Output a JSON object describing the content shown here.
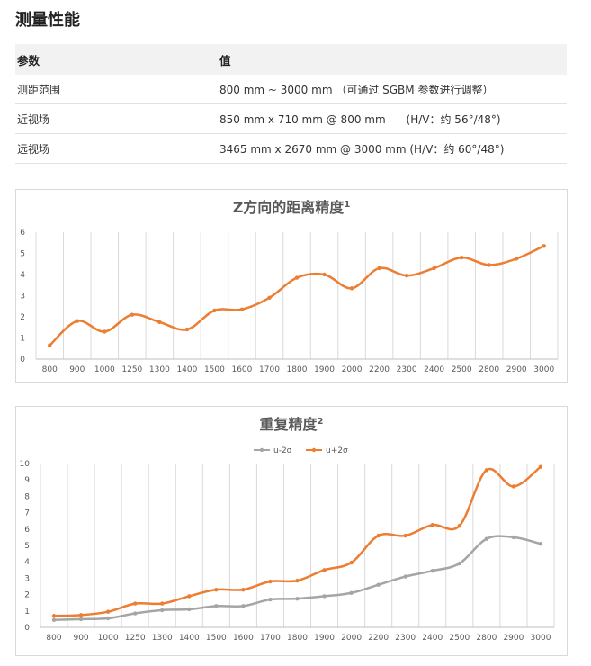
{
  "page": {
    "title": "测量性能",
    "table": {
      "headers": [
        "参数",
        "值"
      ],
      "rows": [
        [
          "测距范围",
          "800 mm ~ 3000 mm （可通过 SGBM 参数进行调整）"
        ],
        [
          "近视场",
          "850 mm x 710 mm @ 800 mm      (H/V：约 56°/48°)"
        ],
        [
          "远视场",
          "3465 mm x 2670 mm @ 3000 mm (H/V：约 60°/48°)"
        ]
      ]
    }
  },
  "colors": {
    "orange": "#ED7D31",
    "gray": "#A5A5A5",
    "grid": "#D9D9D9"
  },
  "chart_data": [
    {
      "type": "line",
      "title": "Z方向的距离精度",
      "title_sup": "1",
      "categories": [
        "800",
        "900",
        "1000",
        "1250",
        "1300",
        "1400",
        "1500",
        "1600",
        "1700",
        "1800",
        "1900",
        "2000",
        "2200",
        "2300",
        "2400",
        "2500",
        "2800",
        "2900",
        "3000"
      ],
      "series": [
        {
          "values": [
            0.65,
            1.8,
            1.3,
            2.1,
            1.75,
            1.4,
            2.3,
            2.35,
            2.9,
            3.85,
            4.0,
            3.35,
            4.3,
            3.95,
            4.3,
            4.8,
            4.45,
            4.75,
            5.35
          ]
        }
      ],
      "ylim": [
        0,
        6
      ],
      "yticks": [
        0,
        1,
        2,
        3,
        4,
        5,
        6
      ],
      "grid": "vertical",
      "legend": "none"
    },
    {
      "type": "line",
      "title": "重复精度",
      "title_sup": "2",
      "categories": [
        "800",
        "900",
        "1000",
        "1250",
        "1300",
        "1400",
        "1500",
        "1600",
        "1700",
        "1800",
        "1900",
        "2000",
        "2200",
        "2300",
        "2400",
        "2500",
        "2800",
        "2900",
        "3000"
      ],
      "series": [
        {
          "name": "u-2σ",
          "values": [
            0.45,
            0.5,
            0.55,
            0.85,
            1.05,
            1.1,
            1.3,
            1.3,
            1.7,
            1.75,
            1.9,
            2.1,
            2.6,
            3.1,
            3.45,
            3.9,
            5.4,
            5.5,
            5.1
          ]
        },
        {
          "name": "u+2σ",
          "values": [
            0.7,
            0.75,
            0.95,
            1.45,
            1.45,
            1.9,
            2.3,
            2.3,
            2.8,
            2.85,
            3.5,
            3.95,
            5.6,
            5.6,
            6.25,
            6.2,
            9.6,
            8.6,
            9.8
          ]
        }
      ],
      "ylim": [
        0,
        10
      ],
      "yticks": [
        0,
        1,
        2,
        3,
        4,
        5,
        6,
        7,
        8,
        9,
        10
      ],
      "grid": "vertical",
      "legend": "top-center"
    }
  ]
}
